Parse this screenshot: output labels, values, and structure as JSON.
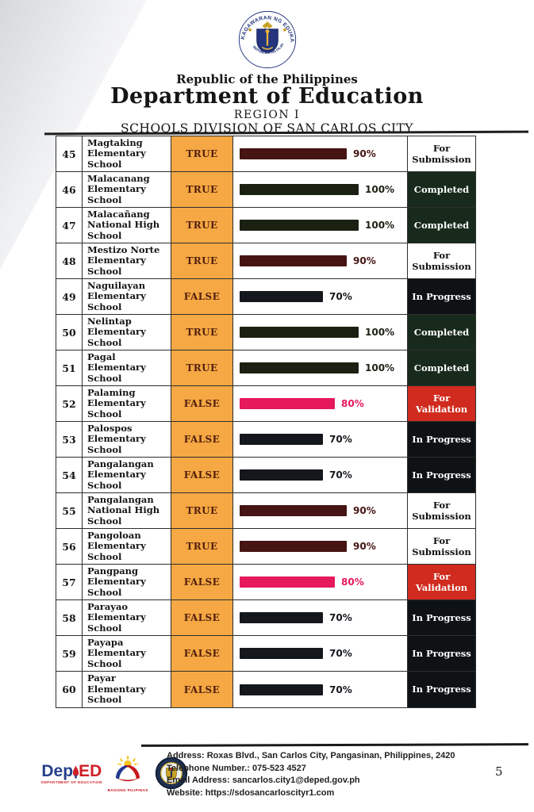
{
  "header": {
    "republic": "Republic of the Philippines",
    "department": "Department of Education",
    "region": "REGION I",
    "division": "SCHOOLS DIVISION OF SAN CARLOS CITY",
    "seal_top_text": "KAGAWARAN NG EDUKASYON",
    "seal_bottom_text": "REPUBLIKA NG PILIPINAS"
  },
  "table": {
    "rows": [
      {
        "no": "45",
        "school": "Magtaking Elementary School",
        "flag": "TRUE",
        "percent": 90,
        "percent_label": "90%",
        "bar_color": "maroon",
        "status": "For Submission",
        "status_style": "submission"
      },
      {
        "no": "46",
        "school": "Malacanang Elementary School",
        "flag": "TRUE",
        "percent": 100,
        "percent_label": "100%",
        "bar_color": "darkgreen",
        "status": "Completed",
        "status_style": "completed"
      },
      {
        "no": "47",
        "school": "Malacañang National High School",
        "flag": "TRUE",
        "percent": 100,
        "percent_label": "100%",
        "bar_color": "darkgreen",
        "status": "Completed",
        "status_style": "completed"
      },
      {
        "no": "48",
        "school": "Mestizo Norte Elementary School",
        "flag": "TRUE",
        "percent": 90,
        "percent_label": "90%",
        "bar_color": "maroon",
        "status": "For Submission",
        "status_style": "submission"
      },
      {
        "no": "49",
        "school": "Naguilayan Elementary School",
        "flag": "FALSE",
        "percent": 70,
        "percent_label": "70%",
        "bar_color": "black",
        "status": "In Progress",
        "status_style": "inprogress"
      },
      {
        "no": "50",
        "school": "Nelintap Elementary School",
        "flag": "TRUE",
        "percent": 100,
        "percent_label": "100%",
        "bar_color": "darkgreen",
        "status": "Completed",
        "status_style": "completed"
      },
      {
        "no": "51",
        "school": "Pagal Elementary School",
        "flag": "TRUE",
        "percent": 100,
        "percent_label": "100%",
        "bar_color": "darkgreen",
        "status": "Completed",
        "status_style": "completed"
      },
      {
        "no": "52",
        "school": "Palaming Elementary School",
        "flag": "FALSE",
        "percent": 80,
        "percent_label": "80%",
        "bar_color": "pink",
        "status": "For Validation",
        "status_style": "validation"
      },
      {
        "no": "53",
        "school": "Palospos Elementary School",
        "flag": "FALSE",
        "percent": 70,
        "percent_label": "70%",
        "bar_color": "black",
        "status": "In Progress",
        "status_style": "inprogress"
      },
      {
        "no": "54",
        "school": "Pangalangan Elementary School",
        "flag": "FALSE",
        "percent": 70,
        "percent_label": "70%",
        "bar_color": "black",
        "status": "In Progress",
        "status_style": "inprogress"
      },
      {
        "no": "55",
        "school": "Pangalangan National High School",
        "flag": "TRUE",
        "percent": 90,
        "percent_label": "90%",
        "bar_color": "maroon",
        "status": "For Submission",
        "status_style": "submission"
      },
      {
        "no": "56",
        "school": "Pangoloan Elementary School",
        "flag": "TRUE",
        "percent": 90,
        "percent_label": "90%",
        "bar_color": "maroon",
        "status": "For Submission",
        "status_style": "submission"
      },
      {
        "no": "57",
        "school": "Pangpang Elementary School",
        "flag": "FALSE",
        "percent": 80,
        "percent_label": "80%",
        "bar_color": "pink",
        "status": "For Validation",
        "status_style": "validation"
      },
      {
        "no": "58",
        "school": "Parayao Elementary School",
        "flag": "FALSE",
        "percent": 70,
        "percent_label": "70%",
        "bar_color": "black",
        "status": "In Progress",
        "status_style": "inprogress"
      },
      {
        "no": "59",
        "school": "Payapa Elementary School",
        "flag": "FALSE",
        "percent": 70,
        "percent_label": "70%",
        "bar_color": "black",
        "status": "In Progress",
        "status_style": "inprogress"
      },
      {
        "no": "60",
        "school": "Payar Elementary School",
        "flag": "FALSE",
        "percent": 70,
        "percent_label": "70%",
        "bar_color": "black",
        "status": "In Progress",
        "status_style": "inprogress"
      }
    ]
  },
  "colors": {
    "orange_cell": "#F5A843",
    "flag_text": "#54200E",
    "bar_maroon": "#451413",
    "bar_darkgreen": "#1B2112",
    "bar_black": "#14171C",
    "bar_pink": "#E5195C",
    "status_completed_bg": "#182A1C",
    "status_inprogress_bg": "#0E1214",
    "status_validation_bg": "#D02B1E"
  },
  "footer": {
    "deped_logo_blue": "Dep",
    "deped_logo_red": "ED",
    "deped_caption": "DEPARTMENT OF EDUCATION",
    "bagong_caption": "BAGONG PILIPINAS",
    "address": "Address: Roxas Blvd., San Carlos City, Pangasinan, Philippines, 2420",
    "telephone": "Telephone Number.: 075-523 4527",
    "email": "Email Address: sancarlos.city1@deped.gov.ph",
    "website": "Website: https://sdosancarloscityr1.com",
    "page_number": "5"
  }
}
